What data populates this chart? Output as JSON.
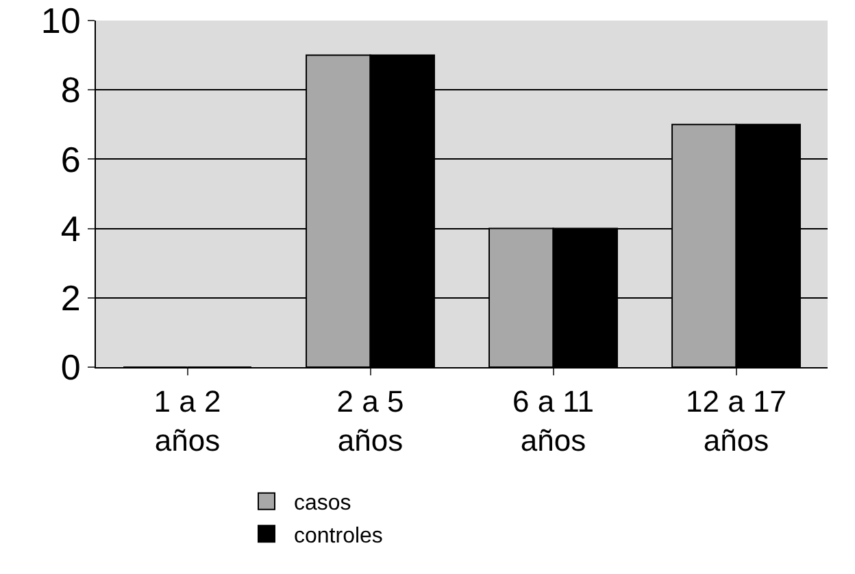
{
  "chart_data": {
    "type": "bar",
    "categories": [
      "1 a 2 años",
      "2 a 5 años",
      "6 a 11 años",
      "12 a 17 años"
    ],
    "series": [
      {
        "name": "casos",
        "color": "#a8a8a8",
        "values": [
          0,
          9,
          4,
          7
        ]
      },
      {
        "name": "controles",
        "color": "#000000",
        "values": [
          0,
          9,
          4,
          7
        ]
      }
    ],
    "ylim": [
      0,
      10
    ],
    "yticks": [
      0,
      2,
      4,
      6,
      8,
      10
    ],
    "grid": "y",
    "legend": "bottom"
  }
}
